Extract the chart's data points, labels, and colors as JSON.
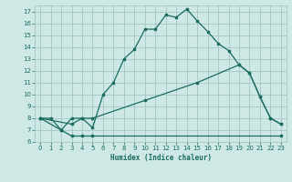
{
  "title": "",
  "xlabel": "Humidex (Indice chaleur)",
  "xlim": [
    -0.5,
    23.5
  ],
  "ylim": [
    6,
    17.5
  ],
  "yticks": [
    6,
    7,
    8,
    9,
    10,
    11,
    12,
    13,
    14,
    15,
    16,
    17
  ],
  "xticks": [
    0,
    1,
    2,
    3,
    4,
    5,
    6,
    7,
    8,
    9,
    10,
    11,
    12,
    13,
    14,
    15,
    16,
    17,
    18,
    19,
    20,
    21,
    22,
    23
  ],
  "bg_color": "#cde8e5",
  "grid_color": "#9bbfbc",
  "line_color": "#1a6b60",
  "series1_x": [
    0,
    1,
    2,
    3,
    4,
    5,
    6,
    7,
    8,
    9,
    10,
    11,
    12,
    13,
    14,
    15,
    16,
    17,
    18,
    19,
    20,
    21,
    22,
    23
  ],
  "series1_y": [
    8.0,
    8.0,
    7.0,
    8.0,
    8.0,
    7.2,
    10.0,
    11.0,
    13.0,
    13.8,
    15.5,
    15.5,
    16.7,
    16.5,
    17.2,
    16.2,
    15.3,
    14.3,
    13.7,
    12.5,
    11.8,
    9.8,
    8.0,
    7.5
  ],
  "series2_x": [
    0,
    3,
    4,
    5,
    10,
    15,
    19,
    20,
    21,
    22,
    23
  ],
  "series2_y": [
    8.0,
    7.5,
    8.0,
    8.0,
    9.5,
    11.0,
    12.5,
    11.8,
    9.8,
    8.0,
    7.5
  ],
  "series3_x": [
    0,
    2,
    3,
    4,
    5,
    23
  ],
  "series3_y": [
    8.0,
    7.0,
    6.5,
    6.5,
    6.5,
    6.5
  ],
  "font_color": "#1a6b60"
}
